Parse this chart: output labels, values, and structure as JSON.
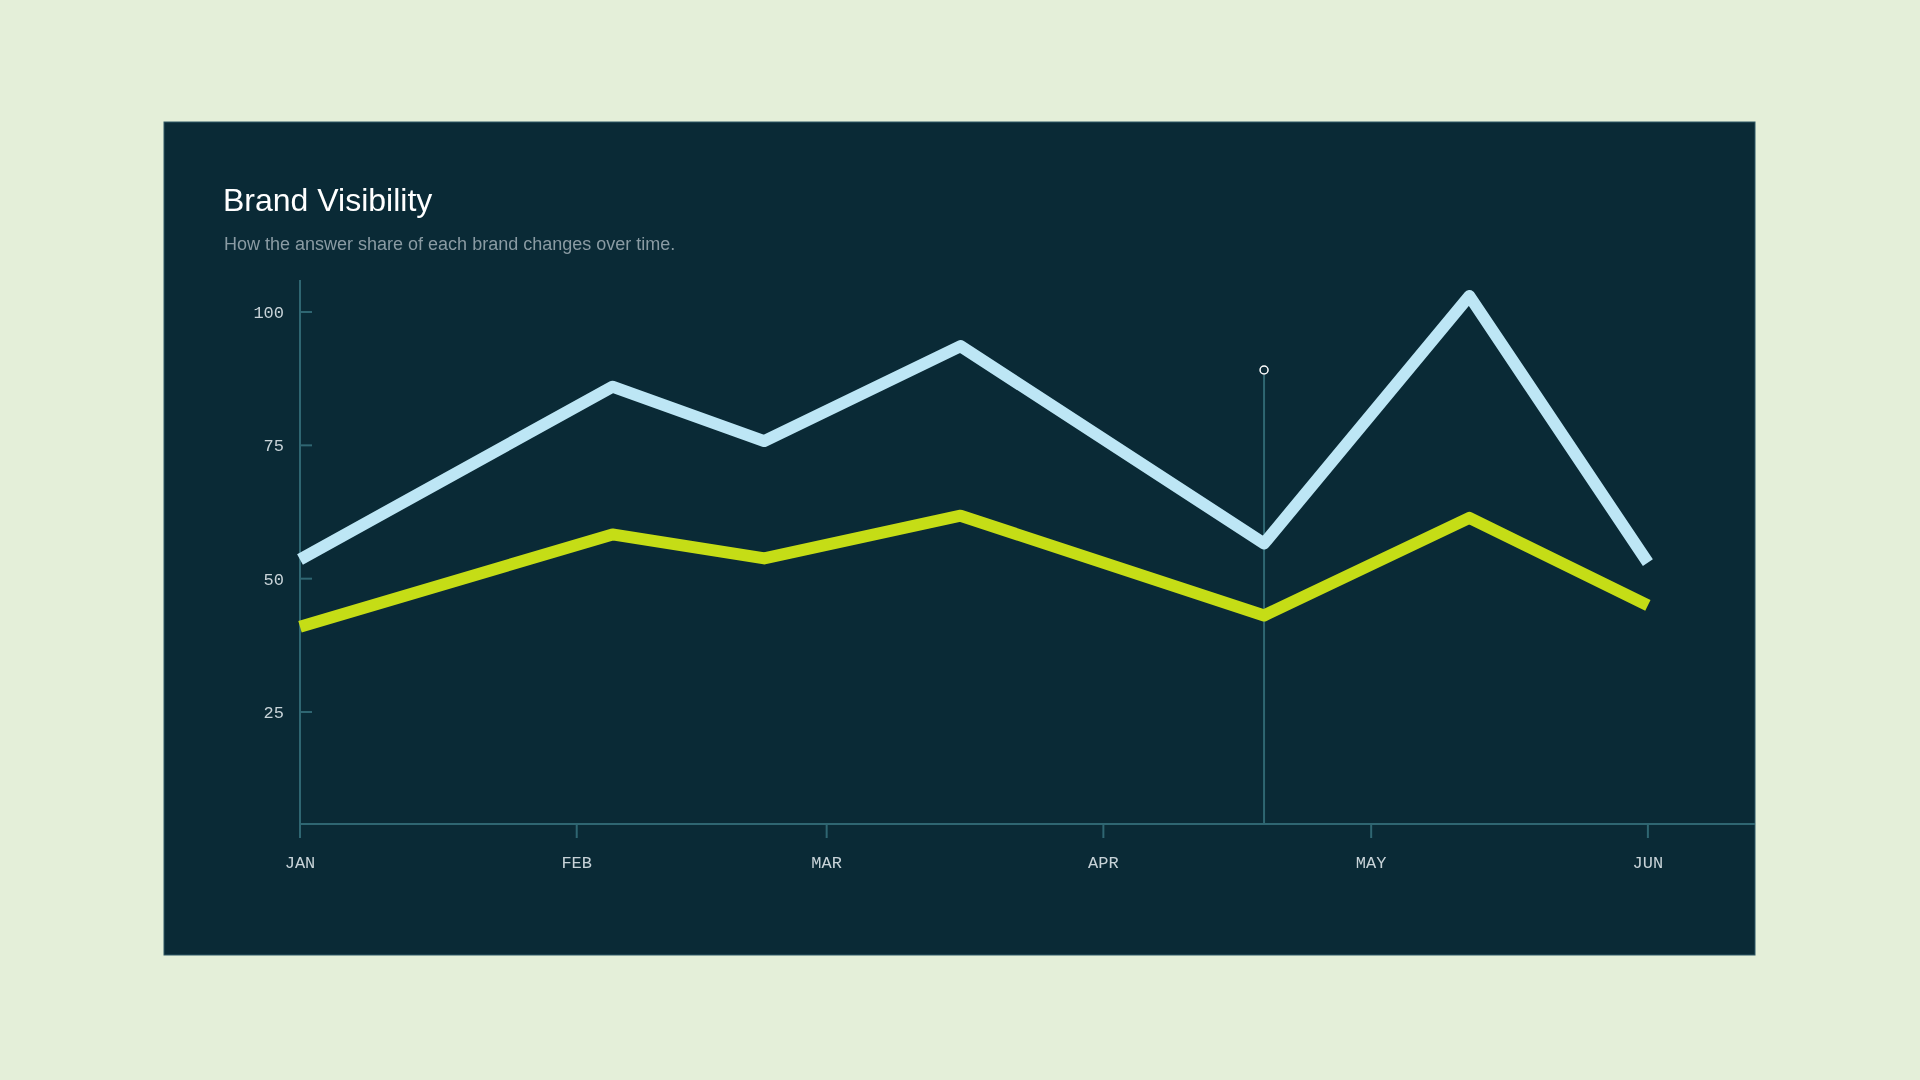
{
  "chart_data": {
    "type": "line",
    "title": "Brand Visibility",
    "subtitle": "How the answer share of each brand changes over time.",
    "xlim": [
      "--01-01",
      "--06-13"
    ],
    "xticks": [
      {
        "value": "--01-01",
        "label": "JAN"
      },
      {
        "value": "--02-01",
        "label": "FEB"
      },
      {
        "value": "--03-01",
        "label": "MAR"
      },
      {
        "value": "--04-01",
        "label": "APR"
      },
      {
        "value": "--05-01",
        "label": "MAY"
      },
      {
        "value": "--06-01",
        "label": "JUN"
      }
    ],
    "ylim": [
      4,
      106
    ],
    "yticks": [
      25,
      50,
      75,
      100
    ],
    "series": [
      {
        "color": "#bde6f5",
        "x": [
          "--01-01",
          "--02-05",
          "--02-22",
          "--03-16",
          "--04-19",
          "--05-12",
          "--06-01"
        ],
        "values": [
          53.6,
          86,
          75.8,
          93.6,
          56.6,
          103,
          53
        ]
      },
      {
        "color": "#c5dd16",
        "x": [
          "--01-01",
          "--02-05",
          "--02-22",
          "--03-16",
          "--04-19",
          "--05-12",
          "--06-01"
        ],
        "values": [
          41,
          58.3,
          53.8,
          61.8,
          43.1,
          61.4,
          45
        ]
      }
    ],
    "ref_lines": [
      {
        "axis": "x",
        "value": "--04-19",
        "color": "#2f6672"
      }
    ],
    "grid": false,
    "marker": "none",
    "line_style": "solid"
  }
}
